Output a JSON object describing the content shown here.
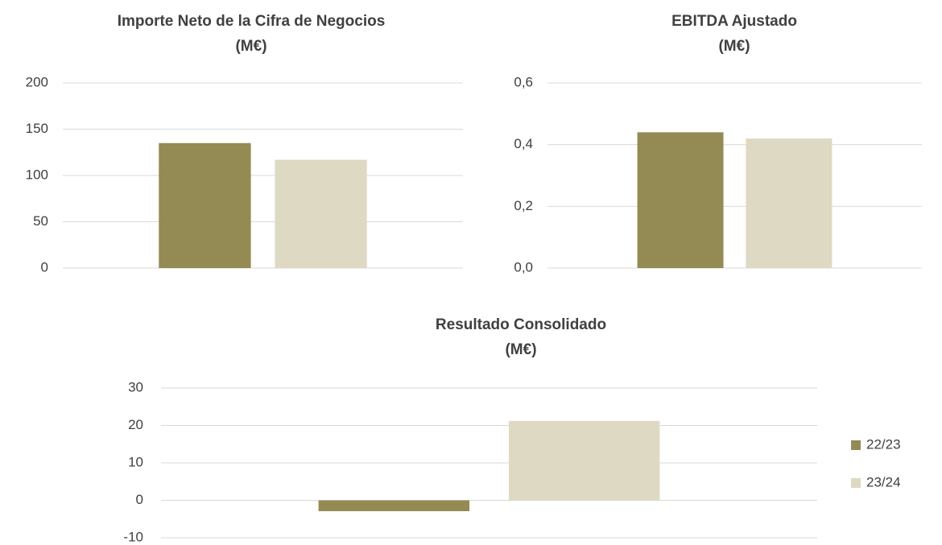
{
  "chart_data": [
    {
      "type": "bar",
      "title": [
        "Importe Neto de la Cifra de Negocios",
        "(M€)"
      ],
      "categories": [
        null
      ],
      "series": [
        {
          "color": "#948a54",
          "values": [
            135
          ]
        },
        {
          "color": "#ddd9c3",
          "values": [
            117
          ]
        }
      ],
      "ylim": [
        0,
        200
      ],
      "yticks": [
        0,
        50,
        100,
        150,
        200
      ],
      "grid": true
    },
    {
      "type": "bar",
      "title": [
        "EBITDA Ajustado",
        "(M€)"
      ],
      "categories": [
        null
      ],
      "series": [
        {
          "color": "#948a54",
          "values": [
            0.44
          ]
        },
        {
          "color": "#ddd9c3",
          "values": [
            0.42
          ]
        }
      ],
      "ylim": [
        0,
        0.6
      ],
      "yticks": [
        {
          "value": 0,
          "label": "0,0"
        },
        {
          "value": 0.2,
          "label": "0,2"
        },
        {
          "value": 0.4,
          "label": "0,4"
        },
        {
          "value": 0.6,
          "label": "0,6"
        }
      ],
      "grid": true
    },
    {
      "type": "bar",
      "title": [
        "Resultado Consolidado",
        "(M€)"
      ],
      "categories": [
        null
      ],
      "series": [
        {
          "name": "22/23",
          "color": "#948a54",
          "values": [
            -2.9
          ]
        },
        {
          "name": "23/24",
          "color": "#ddd9c3",
          "values": [
            21.2
          ]
        }
      ],
      "ylim": [
        -10,
        30
      ],
      "yticks": [
        -10,
        0,
        10,
        20,
        30
      ],
      "grid": true,
      "legend": "right"
    }
  ]
}
